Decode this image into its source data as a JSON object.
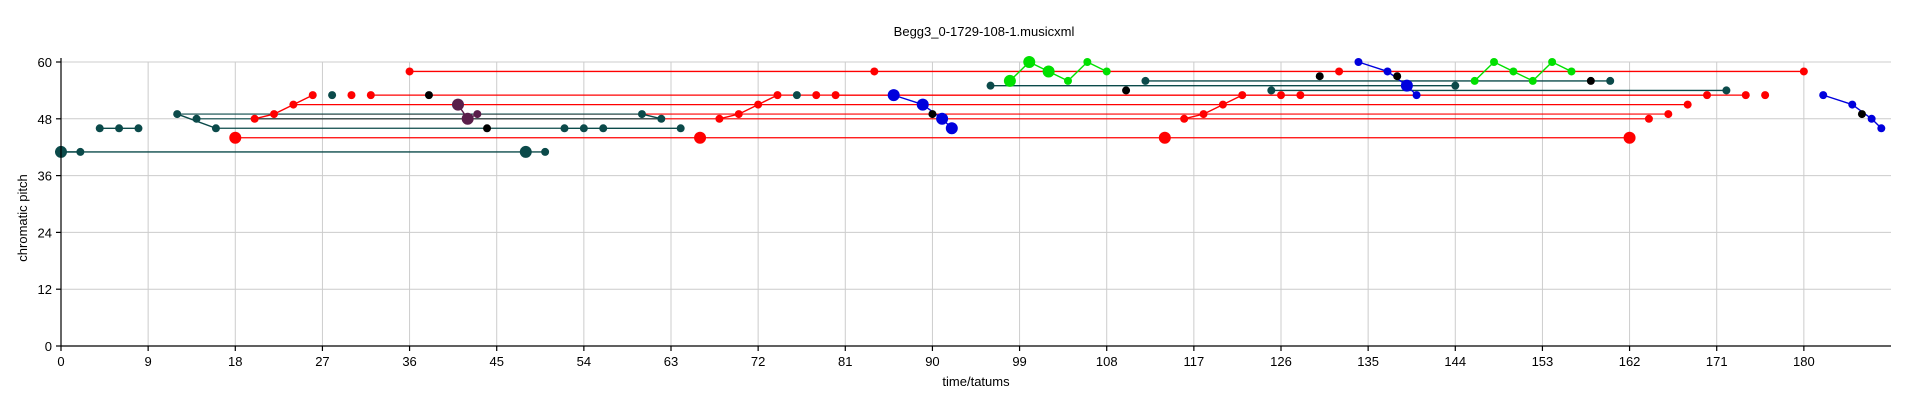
{
  "chart_data": {
    "type": "scatter",
    "title": "Begg3_0-1729-108-1.musicxml",
    "xlabel": "time/tatums",
    "ylabel": "chromatic pitch",
    "xlim": [
      0,
      189
    ],
    "ylim": [
      0,
      60
    ],
    "xticks": [
      0,
      9,
      18,
      27,
      36,
      45,
      54,
      63,
      72,
      81,
      90,
      99,
      108,
      117,
      126,
      135,
      144,
      153,
      162,
      171,
      180
    ],
    "yticks": [
      0,
      12,
      24,
      36,
      48,
      60
    ],
    "grid": true,
    "colors": {
      "red": "#ff0000",
      "teal": "#0b4a4a",
      "blue": "#0000dd",
      "green": "#00e000",
      "black": "#000000",
      "purple": "#5a1e4a"
    },
    "series": [
      {
        "color": "teal",
        "points": [
          {
            "x": 0,
            "y": 41,
            "s": "l"
          },
          {
            "x": 2,
            "y": 41
          },
          {
            "x": 48,
            "y": 41,
            "s": "l"
          },
          {
            "x": 50,
            "y": 41
          }
        ],
        "links": [
          [
            0,
            1
          ],
          [
            0,
            2
          ],
          [
            2,
            3
          ]
        ]
      },
      {
        "color": "teal",
        "points": [
          {
            "x": 4,
            "y": 46
          },
          {
            "x": 6,
            "y": 46
          },
          {
            "x": 8,
            "y": 46
          }
        ],
        "links": [
          [
            0,
            1
          ],
          [
            1,
            2
          ]
        ]
      },
      {
        "color": "teal",
        "points": [
          {
            "x": 12,
            "y": 49
          },
          {
            "x": 14,
            "y": 48
          },
          {
            "x": 16,
            "y": 46
          }
        ],
        "links": [
          [
            0,
            2
          ]
        ]
      },
      {
        "color": "red",
        "points": [
          {
            "x": 18,
            "y": 44,
            "s": "l"
          },
          {
            "x": 20,
            "y": 48
          },
          {
            "x": 22,
            "y": 49
          },
          {
            "x": 24,
            "y": 51
          },
          {
            "x": 26,
            "y": 53
          },
          {
            "x": 30,
            "y": 53
          },
          {
            "x": 32,
            "y": 53
          }
        ],
        "links": [
          [
            1,
            2
          ],
          [
            2,
            3
          ],
          [
            3,
            4
          ]
        ]
      },
      {
        "color": "teal",
        "points": [
          {
            "x": 28,
            "y": 53
          }
        ],
        "links": []
      },
      {
        "color": "red",
        "points": [
          {
            "x": 36,
            "y": 58
          },
          {
            "x": 84,
            "y": 58
          },
          {
            "x": 180,
            "y": 58
          }
        ],
        "links": [
          [
            0,
            2
          ]
        ]
      },
      {
        "color": "black",
        "points": [
          {
            "x": 38,
            "y": 53
          },
          {
            "x": 44,
            "y": 46
          }
        ],
        "links": []
      },
      {
        "color": "purple",
        "points": [
          {
            "x": 41,
            "y": 51,
            "s": "l"
          },
          {
            "x": 42,
            "y": 48,
            "s": "l"
          },
          {
            "x": 43,
            "y": 49
          }
        ],
        "links": [
          [
            0,
            1
          ],
          [
            1,
            2
          ]
        ]
      },
      {
        "color": "teal",
        "points": [
          {
            "x": 52,
            "y": 46
          },
          {
            "x": 54,
            "y": 46
          },
          {
            "x": 56,
            "y": 46
          },
          {
            "x": 64,
            "y": 46
          }
        ],
        "links": [
          [
            0,
            1
          ],
          [
            1,
            2
          ],
          [
            2,
            3
          ]
        ]
      },
      {
        "color": "teal",
        "points": [
          {
            "x": 60,
            "y": 49
          },
          {
            "x": 62,
            "y": 48
          }
        ],
        "links": [
          [
            0,
            1
          ]
        ]
      },
      {
        "color": "red",
        "points": [
          {
            "x": 66,
            "y": 44,
            "s": "l"
          },
          {
            "x": 68,
            "y": 48
          },
          {
            "x": 70,
            "y": 49
          },
          {
            "x": 72,
            "y": 51
          },
          {
            "x": 74,
            "y": 53
          },
          {
            "x": 78,
            "y": 53
          },
          {
            "x": 80,
            "y": 53
          }
        ],
        "links": [
          [
            1,
            2
          ],
          [
            2,
            3
          ],
          [
            3,
            4
          ]
        ]
      },
      {
        "color": "teal",
        "points": [
          {
            "x": 76,
            "y": 53
          }
        ],
        "links": []
      },
      {
        "color": "blue",
        "points": [
          {
            "x": 86,
            "y": 53,
            "s": "l"
          },
          {
            "x": 89,
            "y": 51,
            "s": "l"
          },
          {
            "x": 91,
            "y": 48,
            "s": "l"
          },
          {
            "x": 92,
            "y": 46,
            "s": "l"
          }
        ],
        "links": [
          [
            0,
            1
          ],
          [
            1,
            2
          ],
          [
            2,
            3
          ]
        ]
      },
      {
        "color": "black",
        "points": [
          {
            "x": 90,
            "y": 49
          }
        ],
        "links": []
      },
      {
        "color": "teal",
        "points": [
          {
            "x": 96,
            "y": 55
          },
          {
            "x": 112,
            "y": 56
          },
          {
            "x": 144,
            "y": 55
          },
          {
            "x": 160,
            "y": 56
          },
          {
            "x": 172,
            "y": 54
          },
          {
            "x": 125,
            "y": 54
          }
        ],
        "links": [
          [
            0,
            2
          ],
          [
            1,
            3
          ],
          [
            5,
            4
          ]
        ]
      },
      {
        "color": "green",
        "points": [
          {
            "x": 98,
            "y": 56,
            "s": "l"
          },
          {
            "x": 100,
            "y": 60,
            "s": "l"
          },
          {
            "x": 102,
            "y": 58,
            "s": "l"
          },
          {
            "x": 104,
            "y": 56
          },
          {
            "x": 106,
            "y": 60
          },
          {
            "x": 108,
            "y": 58
          }
        ],
        "links": [
          [
            0,
            1
          ],
          [
            1,
            2
          ],
          [
            2,
            3
          ],
          [
            3,
            4
          ],
          [
            4,
            5
          ]
        ]
      },
      {
        "color": "black",
        "points": [
          {
            "x": 110,
            "y": 54
          },
          {
            "x": 130,
            "y": 57
          },
          {
            "x": 158,
            "y": 56
          }
        ],
        "links": []
      },
      {
        "color": "red",
        "points": [
          {
            "x": 114,
            "y": 44,
            "s": "l"
          },
          {
            "x": 116,
            "y": 48
          },
          {
            "x": 118,
            "y": 49
          },
          {
            "x": 120,
            "y": 51
          },
          {
            "x": 122,
            "y": 53
          },
          {
            "x": 126,
            "y": 53
          },
          {
            "x": 128,
            "y": 53
          },
          {
            "x": 132,
            "y": 58
          }
        ],
        "links": [
          [
            1,
            2
          ],
          [
            2,
            3
          ],
          [
            3,
            4
          ]
        ]
      },
      {
        "color": "blue",
        "points": [
          {
            "x": 134,
            "y": 60
          },
          {
            "x": 137,
            "y": 58
          },
          {
            "x": 139,
            "y": 55,
            "s": "l"
          },
          {
            "x": 140,
            "y": 53
          }
        ],
        "links": [
          [
            0,
            1
          ],
          [
            1,
            2
          ],
          [
            2,
            3
          ]
        ]
      },
      {
        "color": "black",
        "points": [
          {
            "x": 138,
            "y": 57
          }
        ],
        "links": []
      },
      {
        "color": "green",
        "points": [
          {
            "x": 146,
            "y": 56
          },
          {
            "x": 148,
            "y": 60
          },
          {
            "x": 150,
            "y": 58
          },
          {
            "x": 152,
            "y": 56
          },
          {
            "x": 154,
            "y": 60
          },
          {
            "x": 156,
            "y": 58
          }
        ],
        "links": [
          [
            0,
            1
          ],
          [
            1,
            2
          ],
          [
            2,
            3
          ],
          [
            3,
            4
          ],
          [
            4,
            5
          ]
        ]
      },
      {
        "color": "red",
        "points": [
          {
            "x": 162,
            "y": 44,
            "s": "l"
          },
          {
            "x": 164,
            "y": 48
          },
          {
            "x": 166,
            "y": 49
          },
          {
            "x": 168,
            "y": 51
          },
          {
            "x": 170,
            "y": 53
          },
          {
            "x": 174,
            "y": 53
          },
          {
            "x": 176,
            "y": 53
          }
        ],
        "links": []
      },
      {
        "color": "blue",
        "points": [
          {
            "x": 182,
            "y": 53
          },
          {
            "x": 185,
            "y": 51
          },
          {
            "x": 187,
            "y": 48
          },
          {
            "x": 188,
            "y": 46
          }
        ],
        "links": [
          [
            0,
            1
          ],
          [
            1,
            2
          ],
          [
            2,
            3
          ]
        ]
      },
      {
        "color": "black",
        "points": [
          {
            "x": 186,
            "y": 49
          }
        ],
        "links": []
      }
    ],
    "long_links": [
      {
        "color": "red",
        "from": [
          18,
          44
        ],
        "to": [
          162,
          44
        ]
      },
      {
        "color": "red",
        "from": [
          20,
          48
        ],
        "to": [
          164,
          48
        ]
      },
      {
        "color": "red",
        "from": [
          22,
          49
        ],
        "to": [
          166,
          49
        ]
      },
      {
        "color": "red",
        "from": [
          24,
          51
        ],
        "to": [
          168,
          51
        ]
      },
      {
        "color": "red",
        "from": [
          32,
          53
        ],
        "to": [
          170,
          53
        ]
      },
      {
        "color": "red",
        "from": [
          80,
          53
        ],
        "to": [
          174,
          53
        ]
      },
      {
        "color": "teal",
        "from": [
          12,
          49
        ],
        "to": [
          60,
          49
        ]
      },
      {
        "color": "teal",
        "from": [
          14,
          48
        ],
        "to": [
          62,
          48
        ]
      },
      {
        "color": "teal",
        "from": [
          16,
          46
        ],
        "to": [
          52,
          46
        ]
      }
    ]
  }
}
